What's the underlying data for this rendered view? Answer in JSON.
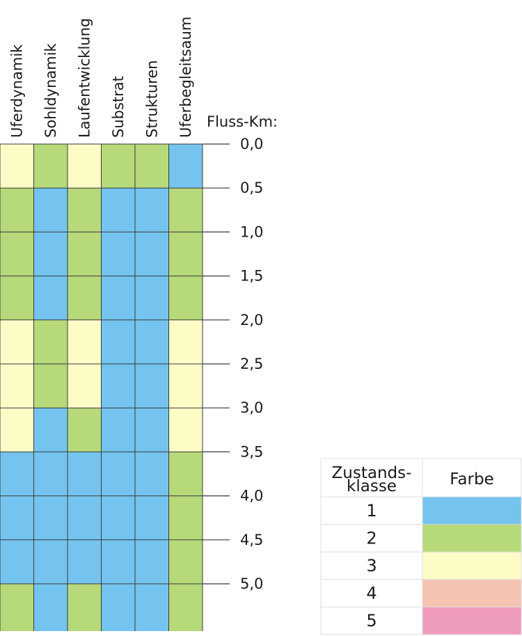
{
  "chart_data": {
    "type": "heatmap",
    "x_label": "Fluss-Km:",
    "columns": [
      "Uferdynamik",
      "Sohldynamik",
      "Laufentwicklung",
      "Substrat",
      "Strukturen",
      "Uferbegleitsaum"
    ],
    "km_ticks": [
      "0,0",
      "0,5",
      "1,0",
      "1,5",
      "2,0",
      "2,5",
      "3,0",
      "3,5",
      "4,0",
      "4,5",
      "5,0"
    ],
    "segments": [
      {
        "from": "0,0",
        "to": "0,5",
        "values": [
          3,
          2,
          3,
          2,
          2,
          1
        ]
      },
      {
        "from": "0,5",
        "to": "1,0",
        "values": [
          2,
          1,
          2,
          1,
          1,
          2
        ]
      },
      {
        "from": "1,0",
        "to": "1,5",
        "values": [
          2,
          1,
          2,
          1,
          1,
          2
        ]
      },
      {
        "from": "1,5",
        "to": "2,0",
        "values": [
          2,
          1,
          2,
          1,
          1,
          2
        ]
      },
      {
        "from": "2,0",
        "to": "2,5",
        "values": [
          3,
          2,
          3,
          1,
          1,
          3
        ]
      },
      {
        "from": "2,5",
        "to": "3,0",
        "values": [
          3,
          2,
          3,
          1,
          1,
          3
        ]
      },
      {
        "from": "3,0",
        "to": "3,5",
        "values": [
          3,
          1,
          2,
          1,
          1,
          3
        ]
      },
      {
        "from": "3,5",
        "to": "4,0",
        "values": [
          1,
          1,
          1,
          1,
          1,
          2
        ]
      },
      {
        "from": "4,0",
        "to": "4,5",
        "values": [
          1,
          1,
          1,
          1,
          1,
          2
        ]
      },
      {
        "from": "4,5",
        "to": "5,0",
        "values": [
          1,
          1,
          1,
          1,
          1,
          2
        ]
      },
      {
        "from": "5,0",
        "to": "",
        "values": [
          2,
          1,
          2,
          1,
          1,
          2
        ]
      }
    ],
    "legend": {
      "header_class_line1": "Zustands-",
      "header_class_line2": "klasse",
      "header_color": "Farbe",
      "classes": [
        "1",
        "2",
        "3",
        "4",
        "5"
      ]
    },
    "class_colors": {
      "1": "#74c4ef",
      "2": "#b6d97a",
      "3": "#fefcc6",
      "4": "#f4c3b1",
      "5": "#ef9bbd"
    },
    "grid_line_color": "#3a3a3a"
  }
}
